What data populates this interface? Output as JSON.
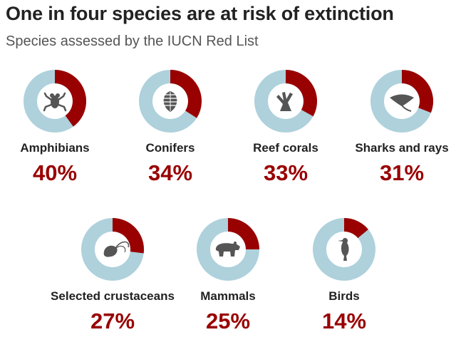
{
  "title": "One in four species are at risk of extinction",
  "subtitle": "Species assessed by the IUCN Red List",
  "colors": {
    "at_risk": "#990000",
    "remainder": "#aed1dc",
    "icon": "#555555"
  },
  "chart_data": {
    "type": "pie",
    "style": "donut",
    "title": "One in four species are at risk of extinction",
    "subtitle": "Species assessed by the IUCN Red List",
    "unit": "%",
    "items": [
      {
        "label": "Amphibians",
        "value": 40,
        "display": "40%",
        "icon": "frog-icon"
      },
      {
        "label": "Conifers",
        "value": 34,
        "display": "34%",
        "icon": "pinecone-icon"
      },
      {
        "label": "Reef corals",
        "value": 33,
        "display": "33%",
        "icon": "coral-icon"
      },
      {
        "label": "Sharks and rays",
        "value": 31,
        "display": "31%",
        "icon": "ray-icon"
      },
      {
        "label": "Selected crustaceans",
        "value": 27,
        "display": "27%",
        "icon": "shrimp-icon"
      },
      {
        "label": "Mammals",
        "value": 25,
        "display": "25%",
        "icon": "bear-icon"
      },
      {
        "label": "Birds",
        "value": 14,
        "display": "14%",
        "icon": "bird-icon"
      }
    ]
  }
}
